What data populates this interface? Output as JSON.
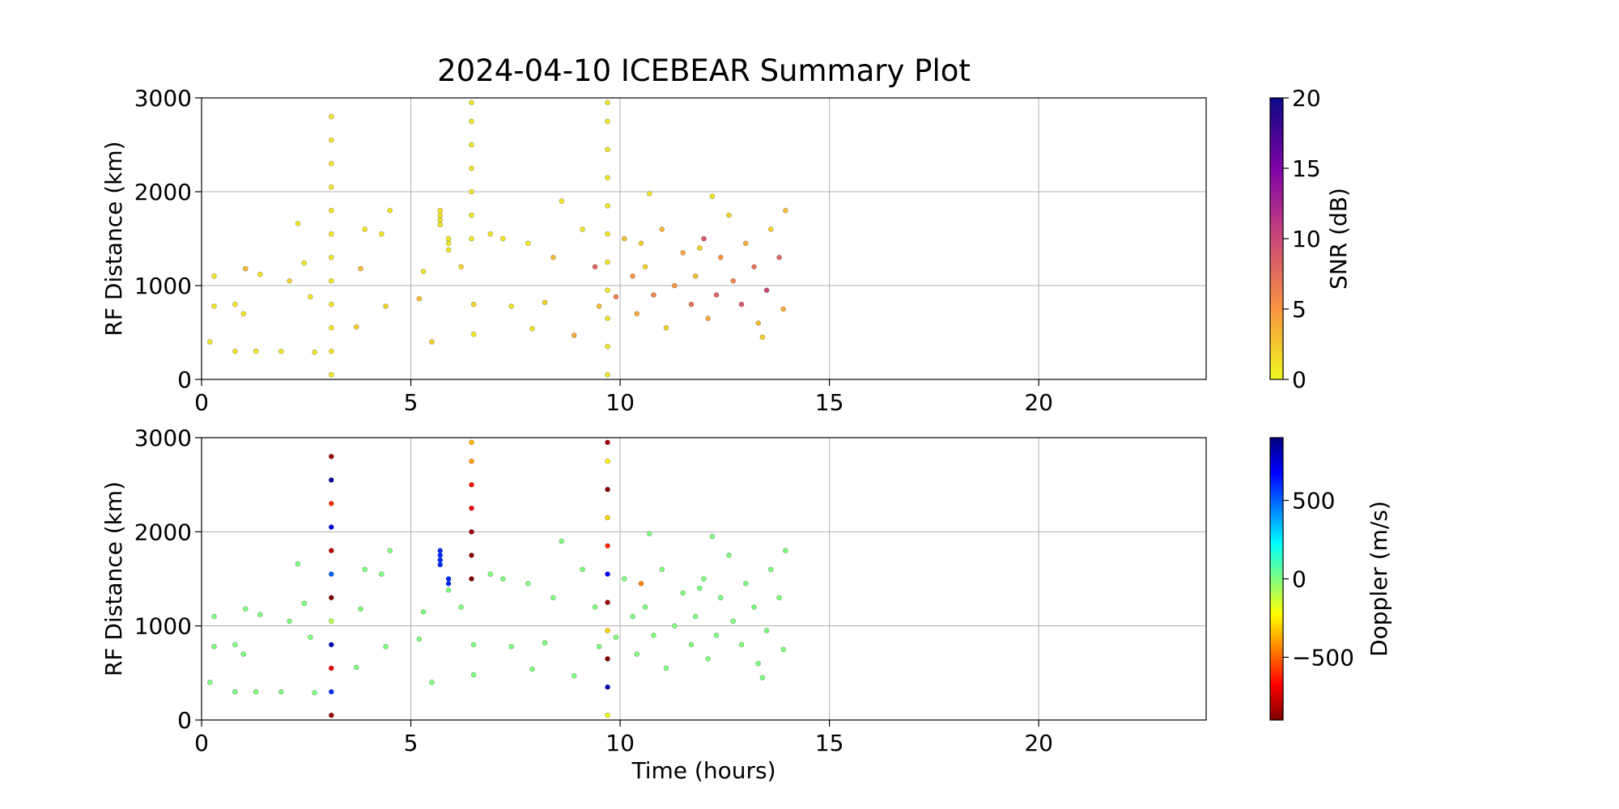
{
  "chart_data": [
    {
      "type": "scatter",
      "title": "2024-04-10 ICEBEAR Summary Plot",
      "ylabel": "RF Distance (km)",
      "xlim": [
        0,
        24
      ],
      "ylim": [
        0,
        3000
      ],
      "xticks": [
        0,
        5,
        10,
        15,
        20
      ],
      "yticks": [
        0,
        1000,
        2000,
        3000
      ],
      "grid": true,
      "x": [
        3.1,
        3.1,
        3.1,
        3.1,
        3.1,
        3.1,
        3.1,
        3.1,
        3.1,
        3.1,
        3.1,
        3.1,
        6.45,
        6.45,
        6.45,
        6.45,
        6.45,
        6.45,
        6.45,
        9.7,
        9.7,
        9.7,
        9.7,
        9.7,
        9.7,
        9.7,
        9.7,
        9.7,
        9.7,
        9.7,
        5.7,
        5.7,
        5.7,
        5.7,
        5.9,
        5.9,
        0.2,
        0.3,
        0.3,
        0.8,
        0.8,
        1,
        1.05,
        1.4,
        1.3,
        1.9,
        2.1,
        2.3,
        2.45,
        2.6,
        2.7,
        3.8,
        3.7,
        3.9,
        4.3,
        4.5,
        4.4,
        5.2,
        5.3,
        5.5,
        5.9,
        6.2,
        6.5,
        6.5,
        6.9,
        7.2,
        7.4,
        7.8,
        7.9,
        8.2,
        8.4,
        8.6,
        8.9,
        9.1,
        9.4,
        9.5,
        9.9,
        10.1,
        10.3,
        10.4,
        10.6,
        10.7,
        10.8,
        11.0,
        11.1,
        11.3,
        11.5,
        11.7,
        11.8,
        12.0,
        12.1,
        12.3,
        12.4,
        12.6,
        12.7,
        12.9,
        13.0,
        13.2,
        13.3,
        13.5,
        13.6,
        13.8,
        13.9,
        13.95,
        13.4,
        11.9,
        12.2,
        10.5
      ],
      "y": [
        50,
        300,
        550,
        800,
        1050,
        1300,
        1550,
        1800,
        2050,
        2300,
        2550,
        2800,
        1500,
        1750,
        2000,
        2250,
        2500,
        2750,
        2950,
        50,
        350,
        650,
        950,
        1250,
        1550,
        1850,
        2150,
        2450,
        2750,
        2950,
        1650,
        1700,
        1750,
        1800,
        1450,
        1500,
        400,
        1100,
        780,
        300,
        800,
        700,
        1180,
        1120,
        300,
        300,
        1050,
        1660,
        1240,
        880,
        290,
        1180,
        560,
        1600,
        1550,
        1800,
        780,
        860,
        1150,
        400,
        1380,
        1200,
        800,
        480,
        1550,
        1500,
        780,
        1450,
        540,
        820,
        1300,
        1900,
        470,
        1600,
        1200,
        780,
        880,
        1500,
        1100,
        700,
        1200,
        1980,
        900,
        1600,
        550,
        1000,
        1350,
        800,
        1100,
        1500,
        650,
        900,
        1300,
        1750,
        1050,
        800,
        1450,
        1200,
        600,
        950,
        1600,
        1300,
        750,
        1800,
        450,
        1400,
        1950,
        1450
      ],
      "c": [
        1,
        1,
        1,
        1,
        1,
        1,
        1,
        1,
        1,
        1,
        1,
        1,
        1,
        1,
        1,
        1,
        1,
        1,
        1,
        1,
        1,
        1,
        1,
        1,
        1,
        1,
        1,
        1,
        1,
        1,
        1,
        1,
        1,
        1,
        1,
        1,
        1,
        1,
        1,
        1,
        1,
        1,
        3,
        1,
        1,
        1,
        2,
        1,
        1,
        1,
        1,
        3,
        2,
        1,
        1,
        1,
        2,
        3,
        1,
        2,
        1,
        2,
        2,
        1,
        1,
        1,
        1,
        1,
        1,
        2,
        3,
        1,
        4,
        1,
        8,
        3,
        6,
        3,
        5,
        4,
        2,
        1,
        6,
        3,
        2,
        5,
        4,
        7,
        3,
        9,
        4,
        8,
        5,
        2,
        6,
        9,
        4,
        7,
        3,
        10,
        2,
        8,
        4,
        3,
        2,
        2,
        1,
        2
      ],
      "colorbar": {
        "label": "SNR (dB)",
        "colormap": "plasma_r",
        "lim": [
          0,
          20
        ],
        "ticks": [
          0,
          5,
          10,
          15,
          20
        ]
      }
    },
    {
      "type": "scatter",
      "ylabel": "RF Distance (km)",
      "xlabel": "Time (hours)",
      "xlim": [
        0,
        24
      ],
      "ylim": [
        0,
        3000
      ],
      "xticks": [
        0,
        5,
        10,
        15,
        20
      ],
      "yticks": [
        0,
        1000,
        2000,
        3000
      ],
      "grid": true,
      "x": [
        3.1,
        3.1,
        3.1,
        3.1,
        3.1,
        3.1,
        3.1,
        3.1,
        3.1,
        3.1,
        3.1,
        3.1,
        6.45,
        6.45,
        6.45,
        6.45,
        6.45,
        6.45,
        6.45,
        9.7,
        9.7,
        9.7,
        9.7,
        9.7,
        9.7,
        9.7,
        9.7,
        9.7,
        9.7,
        9.7,
        5.7,
        5.7,
        5.7,
        5.7,
        5.9,
        5.9,
        0.2,
        0.3,
        0.3,
        0.8,
        0.8,
        1,
        1.05,
        1.4,
        1.3,
        1.9,
        2.1,
        2.3,
        2.45,
        2.6,
        2.7,
        3.8,
        3.7,
        3.9,
        4.3,
        4.5,
        4.4,
        5.2,
        5.3,
        5.5,
        5.9,
        6.2,
        6.5,
        6.5,
        6.9,
        7.2,
        7.4,
        7.8,
        7.9,
        8.2,
        8.4,
        8.6,
        8.9,
        9.1,
        9.4,
        9.5,
        9.9,
        10.1,
        10.3,
        10.4,
        10.6,
        10.7,
        10.8,
        11.0,
        11.1,
        11.3,
        11.5,
        11.7,
        11.8,
        12.0,
        12.1,
        12.3,
        12.4,
        12.6,
        12.7,
        12.9,
        13.0,
        13.2,
        13.3,
        13.5,
        13.6,
        13.8,
        13.9,
        13.95,
        13.4,
        11.9,
        12.2,
        10.5
      ],
      "y": [
        50,
        300,
        550,
        800,
        1050,
        1300,
        1550,
        1800,
        2050,
        2300,
        2550,
        2800,
        1500,
        1750,
        2000,
        2250,
        2500,
        2750,
        2950,
        50,
        350,
        650,
        950,
        1250,
        1550,
        1850,
        2150,
        2450,
        2750,
        2950,
        1650,
        1700,
        1750,
        1800,
        1450,
        1500,
        400,
        1100,
        780,
        300,
        800,
        700,
        1180,
        1120,
        300,
        300,
        1050,
        1660,
        1240,
        880,
        290,
        1180,
        560,
        1600,
        1550,
        1800,
        780,
        860,
        1150,
        400,
        1380,
        1200,
        800,
        480,
        1550,
        1500,
        780,
        1450,
        540,
        820,
        1300,
        1900,
        470,
        1600,
        1200,
        780,
        880,
        1500,
        1100,
        700,
        1200,
        1980,
        900,
        1600,
        550,
        1000,
        1350,
        800,
        1100,
        1500,
        650,
        900,
        1300,
        1750,
        1050,
        800,
        1450,
        1200,
        600,
        950,
        1600,
        1300,
        750,
        1800,
        450,
        1400,
        1950,
        1450
      ],
      "c": [
        -850,
        600,
        -700,
        800,
        -100,
        -900,
        500,
        -800,
        700,
        -600,
        850,
        -850,
        -900,
        -880,
        -850,
        -700,
        -650,
        -400,
        -350,
        -200,
        800,
        -900,
        -300,
        -850,
        700,
        -600,
        -300,
        -900,
        -250,
        -850,
        600,
        600,
        600,
        600,
        600,
        600,
        0,
        0,
        0,
        0,
        0,
        0,
        0,
        0,
        0,
        0,
        0,
        0,
        0,
        0,
        0,
        0,
        0,
        0,
        0,
        0,
        0,
        0,
        0,
        0,
        0,
        0,
        0,
        0,
        0,
        0,
        0,
        0,
        0,
        0,
        0,
        0,
        0,
        0,
        0,
        0,
        0,
        0,
        0,
        0,
        0,
        0,
        0,
        0,
        0,
        0,
        0,
        0,
        0,
        0,
        0,
        0,
        0,
        0,
        0,
        0,
        0,
        0,
        0,
        0,
        0,
        0,
        0,
        0,
        0,
        0,
        0,
        -450
      ],
      "colorbar": {
        "label": "Doppler (m/s)",
        "colormap": "jet_r",
        "lim": [
          -900,
          900
        ],
        "ticks": [
          {
            "value": -500,
            "label": "−500"
          },
          0,
          500
        ]
      }
    }
  ]
}
